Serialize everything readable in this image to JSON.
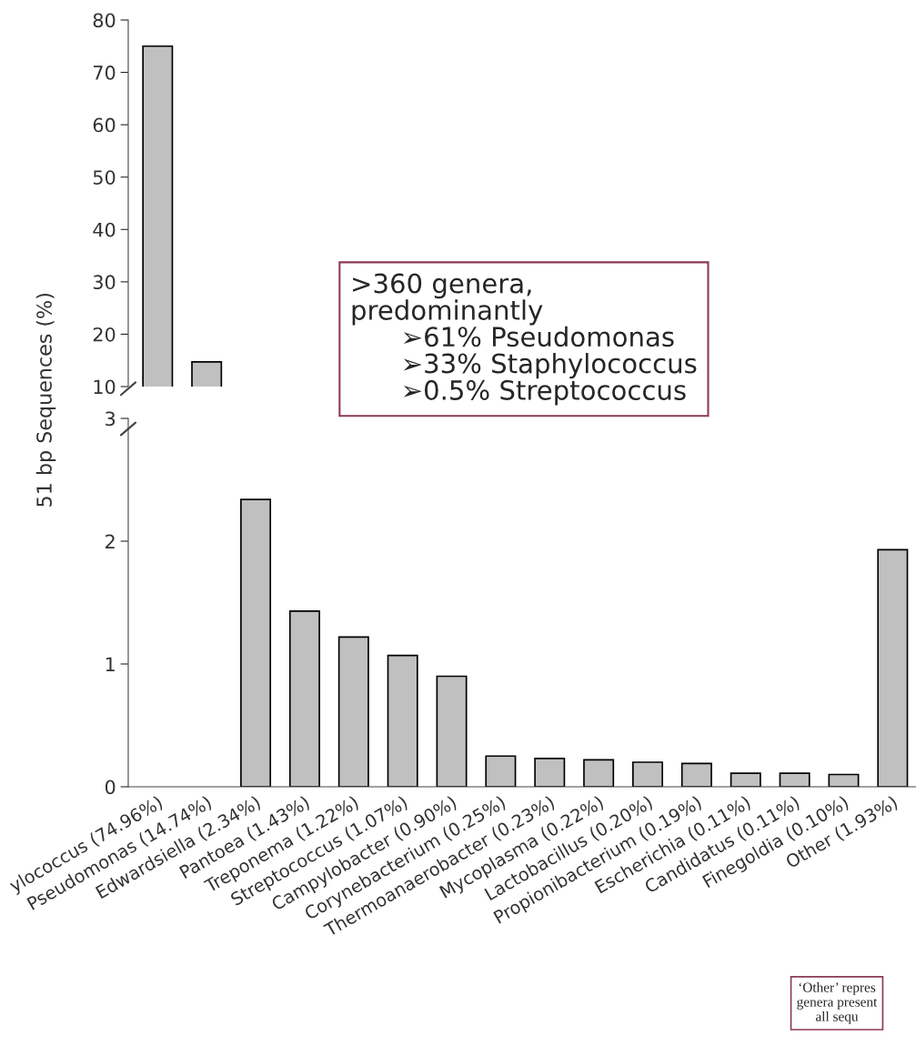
{
  "chart_data": [
    {
      "type": "bar",
      "categories": [
        null,
        null
      ],
      "values": [
        75,
        14.7
      ],
      "color": "#c0c0c0",
      "ylim": [
        10,
        80
      ],
      "yticks": [
        10,
        20,
        30,
        40,
        50,
        60,
        70,
        80
      ],
      "tick_labels": "y",
      "grid": false,
      "annotations": [
        ">360 genera,\npredominantly\n      ➢61% Pseudomonas\n      ➢33% Staphylococcus\n      ➢0.5% Streptococcus"
      ]
    },
    {
      "type": "bar",
      "categories": [
        "ylococcus (74.96%)",
        "Pseudomonas (14.74%)",
        "Edwardsiella (2.34%)",
        "Pantoea (1.43%)",
        "Treponema (1.22%)",
        "Streptococcus (1.07%)",
        "Campylobacter (0.90%)",
        "Corynebacterium (0.25%)",
        "Thermoanaerobacter (0.23%)",
        "Mycoplasma (0.22%)",
        "Lactobacillus (0.20%)",
        "Propionibacterium (0.19%)",
        "Escherichia (0.11%)",
        "Candidatus (0.11%)",
        "Finegoldia (0.10%)",
        "Other (1.93%)"
      ],
      "values": [
        null,
        null,
        2.34,
        1.43,
        1.22,
        1.07,
        0.9,
        0.25,
        0.23,
        0.22,
        0.2,
        0.19,
        0.11,
        0.11,
        0.1,
        1.93
      ],
      "color": "#c0c0c0",
      "ylim": [
        0,
        3
      ],
      "yticks": [
        0,
        1,
        2,
        3
      ],
      "grid": false,
      "ylabel": "51 bp Sequences (%)",
      "annotations": [
        "‘Other’ repres\ngenera present\nall sequ"
      ]
    }
  ]
}
